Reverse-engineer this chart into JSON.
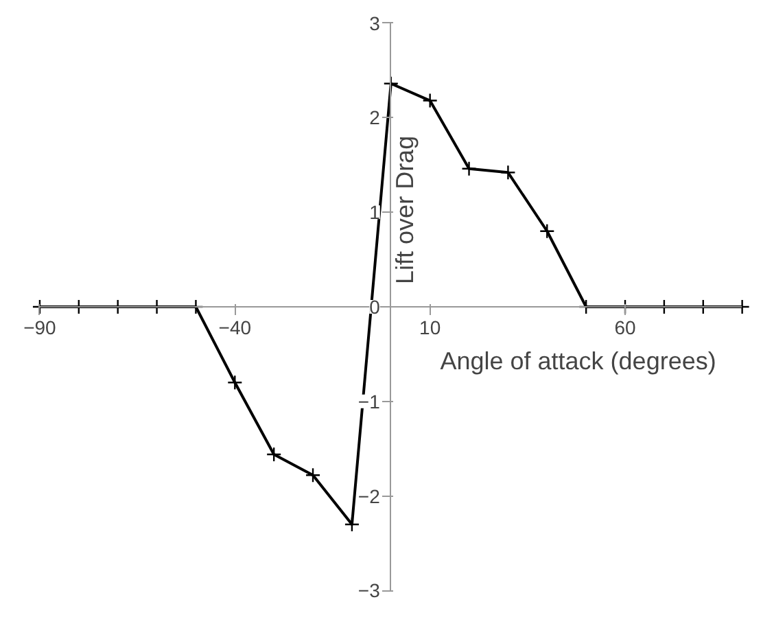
{
  "chart_data": {
    "type": "line",
    "xlabel": "Angle of attack (degrees)",
    "ylabel": "Lift over Drag",
    "x": [
      -90,
      -80,
      -70,
      -60,
      -50,
      -40,
      -30,
      -20,
      -10,
      0,
      10,
      20,
      30,
      40,
      50,
      60,
      70,
      80,
      90
    ],
    "series": [
      {
        "color": "#000000",
        "values": [
          0,
          0,
          0,
          0,
          0,
          -0.8,
          -1.56,
          -1.78,
          -2.3,
          2.36,
          2.18,
          1.46,
          1.42,
          0.8,
          0,
          0,
          0,
          0,
          0
        ]
      }
    ],
    "xlim": [
      -90,
      90
    ],
    "ylim": [
      -3,
      3
    ],
    "xticks": [
      -90,
      -40,
      10,
      60
    ],
    "yticks": [
      -3,
      -2,
      -1,
      0,
      1,
      2,
      3
    ],
    "grid": false,
    "marker": "cross",
    "line_style": "solid"
  }
}
